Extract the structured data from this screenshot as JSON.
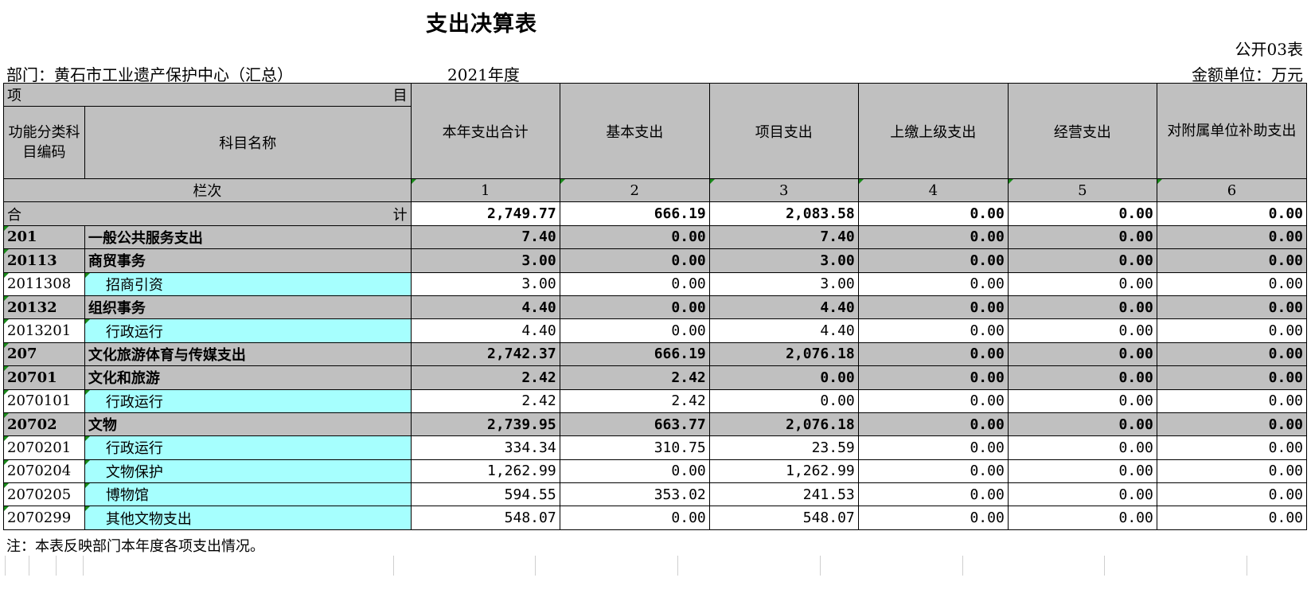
{
  "header": {
    "title": "支出决算表",
    "form_no": "公开03表",
    "department": "部门：黄石市工业遗产保护中心（汇总）",
    "year": "2021年度",
    "unit": "金额单位：万元"
  },
  "columns": {
    "item_left": "项",
    "item_right": "目",
    "code_header": "功能分类科目编码",
    "name_header": "科目名称",
    "total": "本年支出合计",
    "basic": "基本支出",
    "project": "项目支出",
    "upper": "上缴上级支出",
    "business": "经营支出",
    "subsidy": "对附属单位补助支出",
    "col_label": "栏次",
    "col_nums": [
      "1",
      "2",
      "3",
      "4",
      "5",
      "6"
    ]
  },
  "sum_row": {
    "left": "合",
    "right": "计",
    "values": [
      "2,749.77",
      "666.19",
      "2,083.58",
      "0.00",
      "0.00",
      "0.00"
    ]
  },
  "rows": [
    {
      "code": "201",
      "name": "一般公共服务支出",
      "values": [
        "7.40",
        "0.00",
        "7.40",
        "0.00",
        "0.00",
        "0.00"
      ]
    },
    {
      "code": "20113",
      "name": "商贸事务",
      "values": [
        "3.00",
        "0.00",
        "3.00",
        "0.00",
        "0.00",
        "0.00"
      ]
    },
    {
      "code": "2011308",
      "name": "招商引资",
      "values": [
        "3.00",
        "0.00",
        "3.00",
        "0.00",
        "0.00",
        "0.00"
      ]
    },
    {
      "code": "20132",
      "name": "组织事务",
      "values": [
        "4.40",
        "0.00",
        "4.40",
        "0.00",
        "0.00",
        "0.00"
      ]
    },
    {
      "code": "2013201",
      "name": "行政运行",
      "values": [
        "4.40",
        "0.00",
        "4.40",
        "0.00",
        "0.00",
        "0.00"
      ]
    },
    {
      "code": "207",
      "name": "文化旅游体育与传媒支出",
      "values": [
        "2,742.37",
        "666.19",
        "2,076.18",
        "0.00",
        "0.00",
        "0.00"
      ]
    },
    {
      "code": "20701",
      "name": "文化和旅游",
      "values": [
        "2.42",
        "2.42",
        "0.00",
        "0.00",
        "0.00",
        "0.00"
      ]
    },
    {
      "code": "2070101",
      "name": "行政运行",
      "values": [
        "2.42",
        "2.42",
        "0.00",
        "0.00",
        "0.00",
        "0.00"
      ]
    },
    {
      "code": "20702",
      "name": "文物",
      "values": [
        "2,739.95",
        "663.77",
        "2,076.18",
        "0.00",
        "0.00",
        "0.00"
      ]
    },
    {
      "code": "2070201",
      "name": "行政运行",
      "values": [
        "334.34",
        "310.75",
        "23.59",
        "0.00",
        "0.00",
        "0.00"
      ]
    },
    {
      "code": "2070204",
      "name": "文物保护",
      "values": [
        "1,262.99",
        "0.00",
        "1,262.99",
        "0.00",
        "0.00",
        "0.00"
      ]
    },
    {
      "code": "2070205",
      "name": "博物馆",
      "values": [
        "594.55",
        "353.02",
        "241.53",
        "0.00",
        "0.00",
        "0.00"
      ]
    },
    {
      "code": "2070299",
      "name": "其他文物支出",
      "values": [
        "548.07",
        "0.00",
        "548.07",
        "0.00",
        "0.00",
        "0.00"
      ]
    }
  ],
  "note": "注：本表反映部门本年度各项支出情况。"
}
